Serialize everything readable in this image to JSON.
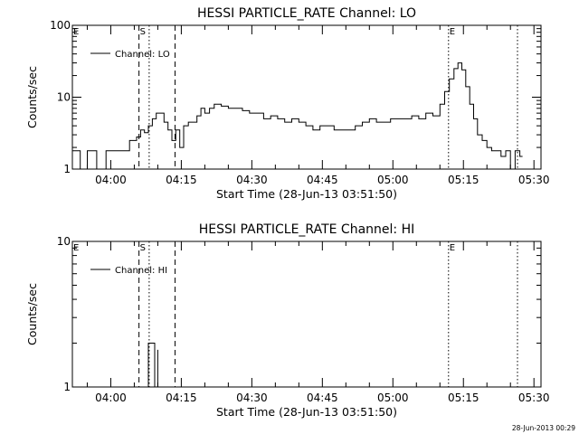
{
  "chart_data": [
    {
      "type": "line",
      "title": "HESSI PARTICLE_RATE Channel: LO",
      "xlabel": "Start Time (28-Jun-13 03:51:50)",
      "ylabel": "Counts/sec",
      "y_scale": "log",
      "ylim": [
        1,
        100
      ],
      "y_tick_labels": [
        "1",
        "10",
        "100"
      ],
      "xlim": [
        "03:51:50",
        "05:31:30"
      ],
      "x_tick_labels": [
        "04:00",
        "04:15",
        "04:30",
        "04:45",
        "05:00",
        "05:15",
        "05:30"
      ],
      "legend": {
        "position": "top-left",
        "entries": [
          "Channel: LO"
        ]
      },
      "series": [
        {
          "name": "Channel: LO",
          "x": [
            "03:51:50",
            "03:53:30",
            "03:55:00",
            "03:57:00",
            "03:59:00",
            "04:01:00",
            "04:02:40",
            "04:04:00",
            "04:05:30",
            "04:06:20",
            "04:07:10",
            "04:08:00",
            "04:08:50",
            "04:09:40",
            "04:10:30",
            "04:11:20",
            "04:12:10",
            "04:13:00",
            "04:13:50",
            "04:14:40",
            "04:15:30",
            "04:16:30",
            "04:17:30",
            "04:18:20",
            "04:19:10",
            "04:20:00",
            "04:21:00",
            "04:22:00",
            "04:23:30",
            "04:25:00",
            "04:26:30",
            "04:28:00",
            "04:29:30",
            "04:31:00",
            "04:32:30",
            "04:34:00",
            "04:35:30",
            "04:37:00",
            "04:38:30",
            "04:40:00",
            "04:41:30",
            "04:43:00",
            "04:44:30",
            "04:46:00",
            "04:47:30",
            "04:49:00",
            "04:50:30",
            "04:52:00",
            "04:53:30",
            "04:55:00",
            "04:56:30",
            "04:58:00",
            "04:59:30",
            "05:01:00",
            "05:02:30",
            "05:04:00",
            "05:05:30",
            "05:07:00",
            "05:08:30",
            "05:10:00",
            "05:11:00",
            "05:12:00",
            "05:13:00",
            "05:13:50",
            "05:14:40",
            "05:15:30",
            "05:16:20",
            "05:17:10",
            "05:18:00",
            "05:19:00",
            "05:20:00",
            "05:21:00",
            "05:22:00",
            "05:23:00",
            "05:24:00",
            "05:25:00",
            "05:26:00",
            "05:27:00"
          ],
          "y": [
            1.8,
            1,
            1.8,
            1,
            1.8,
            1.8,
            1.8,
            2.5,
            2.8,
            3.5,
            3.2,
            4,
            5,
            6,
            6,
            4.5,
            3.5,
            2.5,
            3.5,
            2,
            4,
            4.5,
            4.5,
            5.5,
            7,
            6,
            7,
            8,
            7.5,
            7,
            7,
            6.5,
            6,
            6,
            5,
            5.5,
            5,
            4.5,
            5,
            4.5,
            4,
            3.5,
            4,
            4,
            3.5,
            3.5,
            3.5,
            4,
            4.5,
            5,
            4.5,
            4.5,
            5,
            5,
            5,
            5.5,
            5,
            6,
            5.5,
            8,
            12,
            18,
            25,
            30,
            24,
            14,
            8,
            5,
            3,
            2.5,
            2,
            1.8,
            1.8,
            1.5,
            1.8,
            1,
            1.8,
            1.5
          ]
        }
      ],
      "markers": [
        {
          "label": "E",
          "time": "03:51:50",
          "style": "none"
        },
        {
          "label": "S",
          "time": "04:06:00",
          "style": "dashed"
        },
        {
          "label": "",
          "time": "04:08:10",
          "style": "dotted"
        },
        {
          "label": "",
          "time": "04:13:40",
          "style": "dashed"
        },
        {
          "label": "E",
          "time": "05:11:50",
          "style": "dotted"
        },
        {
          "label": "",
          "time": "05:26:30",
          "style": "dotted"
        }
      ]
    },
    {
      "type": "line",
      "title": "HESSI PARTICLE_RATE Channel: HI",
      "xlabel": "Start Time (28-Jun-13 03:51:50)",
      "ylabel": "Counts/sec",
      "y_scale": "log",
      "ylim": [
        1,
        10
      ],
      "y_tick_labels": [
        "1",
        "10"
      ],
      "xlim": [
        "03:51:50",
        "05:31:30"
      ],
      "x_tick_labels": [
        "04:00",
        "04:15",
        "04:30",
        "04:45",
        "05:00",
        "05:15",
        "05:30"
      ],
      "legend": {
        "position": "top-left",
        "entries": [
          "Channel: HI"
        ]
      },
      "series": [
        {
          "name": "Channel: HI",
          "x": [
            "04:08:00",
            "04:08:00",
            "04:09:20",
            "04:09:20",
            "04:10:00",
            "04:10:00"
          ],
          "y": [
            1,
            2,
            2,
            1,
            1.8,
            1
          ]
        }
      ],
      "markers": [
        {
          "label": "E",
          "time": "03:51:50",
          "style": "none"
        },
        {
          "label": "S",
          "time": "04:06:00",
          "style": "dashed"
        },
        {
          "label": "",
          "time": "04:08:10",
          "style": "dotted"
        },
        {
          "label": "",
          "time": "04:13:40",
          "style": "dashed"
        },
        {
          "label": "E",
          "time": "05:11:50",
          "style": "dotted"
        },
        {
          "label": "",
          "time": "05:26:30",
          "style": "dotted"
        }
      ]
    }
  ],
  "timestamp": "28-Jun-2013 00:29"
}
